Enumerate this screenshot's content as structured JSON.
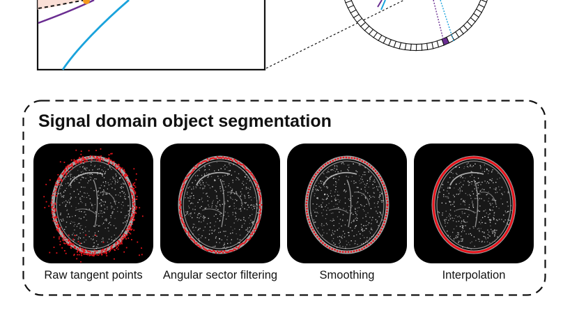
{
  "panel": {
    "title": "Signal domain object segmentation"
  },
  "steps": [
    {
      "label": "Raw tangent points"
    },
    {
      "label": "Angular sector filtering"
    },
    {
      "label": "Smoothing"
    },
    {
      "label": "Interpolation"
    }
  ],
  "colors": {
    "contour": "#e8141c",
    "curve_blue": "#1aa3dc",
    "curve_purple": "#6a2d91",
    "marker_orange": "#f39a1e",
    "tile_background": "#000000"
  }
}
